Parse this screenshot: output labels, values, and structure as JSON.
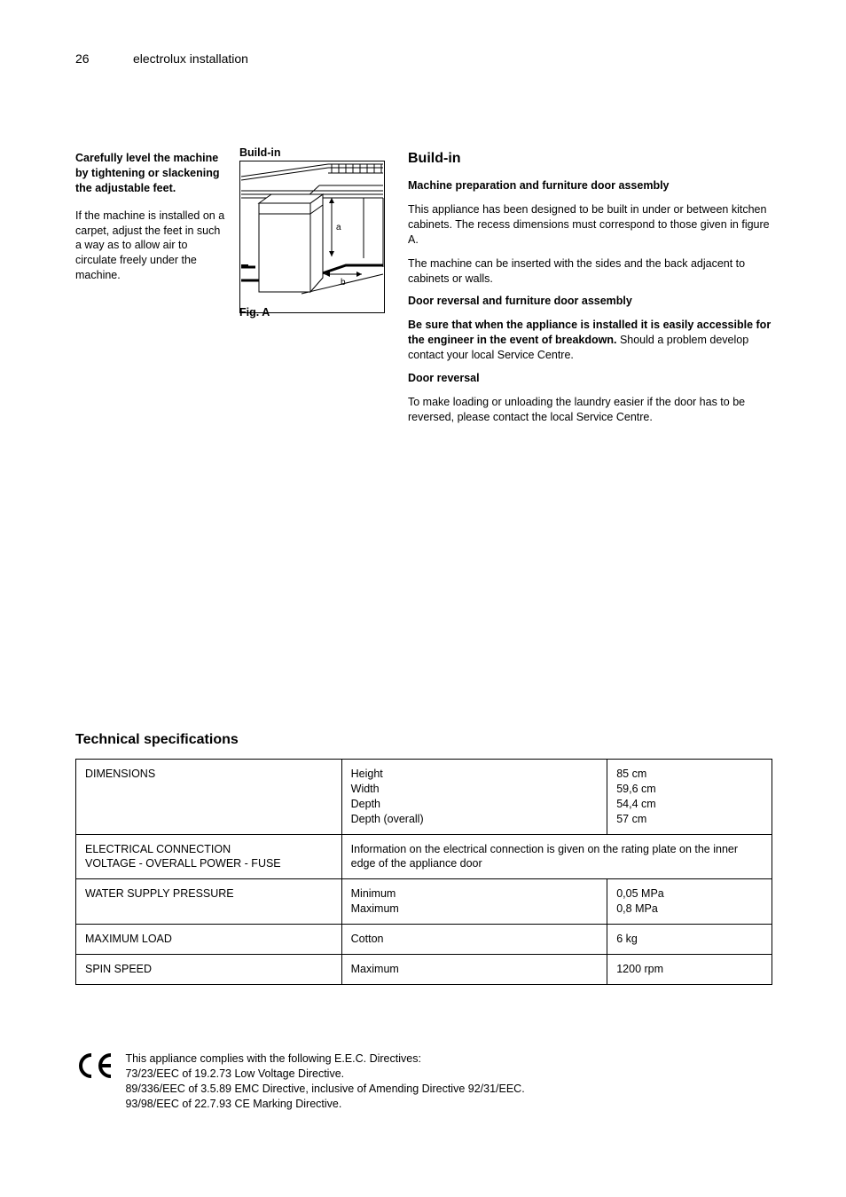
{
  "page_number": "26",
  "header": "electrolux installation",
  "left_col": {
    "p1_bold": "Carefully level the machine by tightening or slackening the adjustable feet.",
    "p2": "If the machine is installed on a carpet, adjust the feet in such a way as to allow air to circulate freely under the machine."
  },
  "diagram": {
    "title": "Build-in",
    "label": "Fig. A",
    "label_a": "a",
    "label_b": "b"
  },
  "right_col": {
    "h1": "Build-in",
    "sh1": "Machine preparation and furniture door assembly",
    "p1": "This appliance has been designed to be built in under or between kitchen cabinets. The recess dimensions must correspond to those given in figure A.",
    "p2": "The machine can be inserted with the sides and the back adjacent to cabinets or walls.",
    "sh2": "Door reversal and furniture door assembly",
    "p3_lead": "Be sure that when the appliance is installed it is easily accessible for the engineer in the event of breakdown.",
    "p3_body": " Should a problem develop contact your local Service Centre.",
    "sh3": "Door reversal",
    "p4": "To make loading or unloading the laundry easier if the door has to be reversed, please contact the local Service Centre."
  },
  "tech_title": "Technical specifications",
  "table": {
    "r1": {
      "label": "DIMENSIONS",
      "mid": "Height\nWidth\nDepth\nDepth (overall)",
      "right": "85 cm\n59,6 cm\n54,4 cm\n57 cm"
    },
    "r2": {
      "label": "ELECTRICAL CONNECTION\nVOLTAGE - OVERALL POWER - FUSE",
      "mid": "Information on the electrical connection is given on the rating plate on the inner edge of the appliance door"
    },
    "r3": {
      "label": "WATER SUPPLY PRESSURE",
      "mid": "Minimum\nMaximum",
      "right": "0,05 MPa\n0,8 MPa"
    },
    "r4": {
      "label": "MAXIMUM LOAD",
      "mid": "Cotton",
      "right": "6 kg"
    },
    "r5": {
      "label": "SPIN SPEED",
      "mid": "Maximum",
      "right": "1200 rpm"
    }
  },
  "ce": {
    "text": "This appliance complies with the following E.E.C. Directives:\n73/23/EEC of 19.2.73 Low Voltage Directive.\n89/336/EEC of 3.5.89 EMC Directive, inclusive of Amending Directive 92/31/EEC.\n93/98/EEC of 22.7.93 CE Marking Directive."
  },
  "svg": {
    "stroke": "#000000",
    "bg": "#ffffff"
  }
}
